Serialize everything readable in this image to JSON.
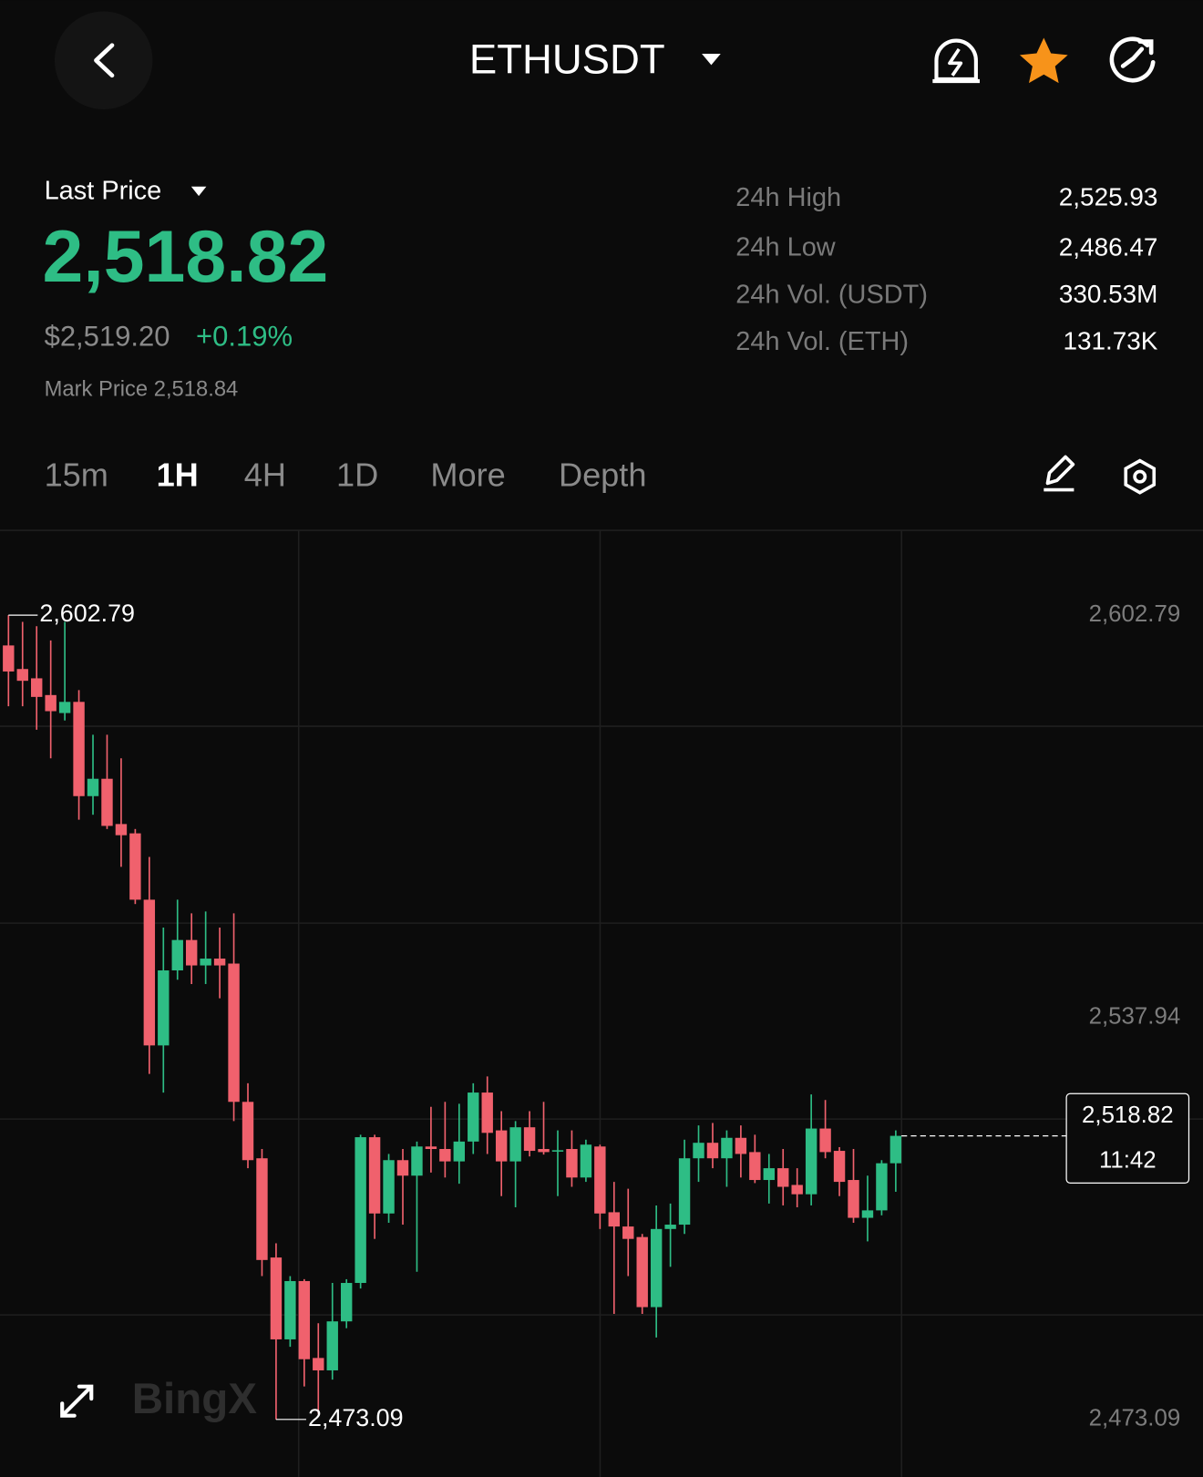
{
  "header": {
    "symbol": "ETHUSDT"
  },
  "price": {
    "label": "Last Price",
    "last": "2,518.82",
    "usd": "$2,519.20",
    "change": "+0.19%",
    "mark": "Mark Price 2,518.84"
  },
  "stats": [
    {
      "label": "24h High",
      "value": "2,525.93"
    },
    {
      "label": "24h Low",
      "value": "2,486.47"
    },
    {
      "label": "24h Vol. (USDT)",
      "value": "330.53M"
    },
    {
      "label": "24h Vol. (ETH)",
      "value": "131.73K"
    }
  ],
  "tabs": [
    "15m",
    "1H",
    "4H",
    "1D",
    "More",
    "Depth"
  ],
  "active_tab": 1,
  "watermark": "BingX",
  "chart_data": {
    "type": "candlestick",
    "open": [
      2597.9,
      2594.1,
      2592.6,
      2589.9,
      2587.0,
      2588.8,
      2573.6,
      2576.4,
      2569.1,
      2567.6,
      2556.9,
      2533.4,
      2545.5,
      2550.4,
      2546.3,
      2547.4,
      2546.6,
      2524.3,
      2515.2,
      2499.2,
      2486.0,
      2495.4,
      2483.0,
      2481.0,
      2488.9,
      2495.1,
      2518.6,
      2506.3,
      2514.9,
      2512.4,
      2517.1,
      2516.7,
      2514.7,
      2517.9,
      2525.8,
      2519.7,
      2514.7,
      2520.2,
      2516.7,
      2516.4,
      2516.7,
      2512.1,
      2517.1,
      2506.5,
      2504.2,
      2502.5,
      2491.2,
      2503.8,
      2504.5,
      2515.2,
      2517.7,
      2515.2,
      2518.5,
      2516.2,
      2511.7,
      2513.6,
      2510.9,
      2509.4,
      2520.0,
      2516.4,
      2511.7,
      2505.6,
      2506.8,
      2514.4
    ],
    "high": [
      2602.79,
      2601.7,
      2601.0,
      2598.7,
      2601.7,
      2590.7,
      2583.5,
      2583.5,
      2579.7,
      2568.3,
      2563.8,
      2552.4,
      2556.9,
      2554.7,
      2555.0,
      2552.4,
      2554.7,
      2527.3,
      2516.7,
      2501.5,
      2496.2,
      2495.7,
      2488.6,
      2495.1,
      2495.7,
      2519.0,
      2519.0,
      2515.9,
      2516.7,
      2517.9,
      2523.5,
      2524.3,
      2524.0,
      2527.3,
      2528.4,
      2522.8,
      2521.2,
      2522.8,
      2524.3,
      2519.7,
      2519.7,
      2518.2,
      2517.4,
      2511.4,
      2510.3,
      2503.0,
      2507.6,
      2507.9,
      2518.2,
      2520.5,
      2520.9,
      2519.7,
      2520.5,
      2519.0,
      2515.9,
      2516.7,
      2513.6,
      2525.5,
      2524.6,
      2517.0,
      2516.7,
      2512.4,
      2514.9,
      2519.7
    ],
    "low": [
      2588.1,
      2588.1,
      2584.3,
      2579.7,
      2585.8,
      2569.8,
      2570.6,
      2568.3,
      2562.2,
      2556.2,
      2528.8,
      2525.8,
      2544.0,
      2543.3,
      2543.3,
      2541.0,
      2521.2,
      2513.6,
      2496.2,
      2473.09,
      2484.8,
      2478.4,
      2474.0,
      2479.5,
      2487.8,
      2494.2,
      2502.2,
      2504.8,
      2504.5,
      2496.9,
      2512.9,
      2512.1,
      2511.1,
      2515.9,
      2515.9,
      2509.1,
      2507.3,
      2515.5,
      2515.8,
      2509.1,
      2510.6,
      2511.4,
      2503.8,
      2490.1,
      2496.2,
      2490.1,
      2486.3,
      2497.7,
      2503.0,
      2511.4,
      2513.6,
      2510.6,
      2512.1,
      2511.2,
      2507.9,
      2507.6,
      2507.3,
      2507.6,
      2515.2,
      2509.1,
      2504.8,
      2501.8,
      2506.0,
      2509.8
    ],
    "close": [
      2593.7,
      2592.2,
      2589.6,
      2587.3,
      2588.8,
      2573.6,
      2576.4,
      2568.8,
      2567.3,
      2556.9,
      2533.4,
      2545.5,
      2550.4,
      2546.3,
      2547.4,
      2546.3,
      2524.3,
      2514.9,
      2498.8,
      2486.0,
      2495.4,
      2482.8,
      2481.0,
      2488.9,
      2495.1,
      2518.6,
      2506.3,
      2514.9,
      2512.4,
      2517.1,
      2516.7,
      2514.7,
      2517.9,
      2525.8,
      2519.3,
      2514.7,
      2520.2,
      2516.4,
      2516.2,
      2516.5,
      2512.1,
      2517.4,
      2506.3,
      2504.2,
      2502.2,
      2491.2,
      2503.8,
      2504.5,
      2515.2,
      2517.7,
      2515.2,
      2518.5,
      2515.9,
      2511.7,
      2513.6,
      2510.6,
      2509.4,
      2520.0,
      2516.2,
      2511.4,
      2505.6,
      2506.8,
      2514.4,
      2518.82
    ],
    "up_color": "#2ebd85",
    "down_color": "#f0616d",
    "ylim": [
      2463.82,
      2616.46
    ],
    "yticks": [
      {
        "value": 2473.09,
        "label": "2,473.09"
      },
      {
        "value": 2537.94,
        "label": "2,537.94"
      },
      {
        "value": 2602.79,
        "label": "2,602.79"
      }
    ],
    "high_mark": {
      "value": 2602.79,
      "label": "2,602.79"
    },
    "low_mark": {
      "value": 2473.09,
      "label": "2,473.09"
    },
    "last_price": {
      "value": 2518.82,
      "label": "2,518.82"
    },
    "countdown": "11:42"
  }
}
